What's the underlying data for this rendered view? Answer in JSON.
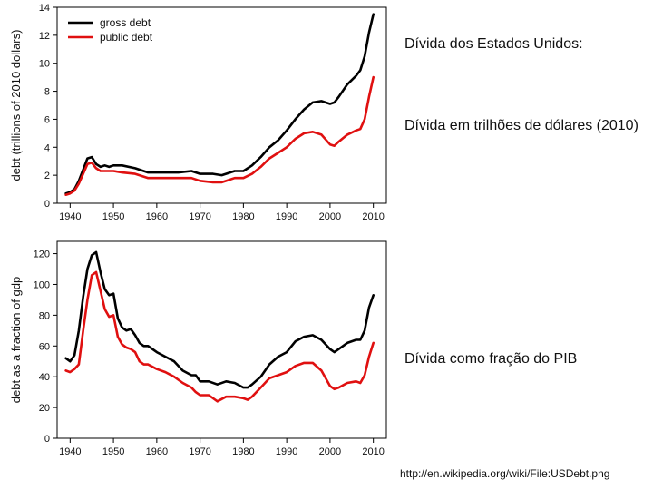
{
  "notes": {
    "title": "Dívida dos Estados Unidos:",
    "unit": "Dívida em trilhões de dólares (2010)",
    "gdp": "Dívida como fração do PIB"
  },
  "source_url": "http://en.wikipedia.org/wiki/File:USDebt.png",
  "colors": {
    "gross": "#000000",
    "public": "#e01010"
  },
  "chart_data": [
    {
      "type": "line",
      "title": "",
      "xlabel": "",
      "ylabel": "debt (trillions of 2010 dollars)",
      "xlim": [
        1937,
        2013
      ],
      "ylim": [
        0,
        14
      ],
      "xticks": [
        1940,
        1950,
        1960,
        1970,
        1980,
        1990,
        2000,
        2010
      ],
      "yticks": [
        0,
        2,
        4,
        6,
        8,
        10,
        12,
        14
      ],
      "legend": "top-left",
      "series": [
        {
          "name": "gross debt",
          "key": "gross",
          "x": [
            1939,
            1940,
            1941,
            1942,
            1943,
            1944,
            1945,
            1946,
            1947,
            1948,
            1949,
            1950,
            1952,
            1955,
            1958,
            1960,
            1965,
            1968,
            1970,
            1973,
            1975,
            1978,
            1980,
            1982,
            1984,
            1986,
            1988,
            1990,
            1992,
            1994,
            1996,
            1998,
            2000,
            2001,
            2002,
            2004,
            2006,
            2007,
            2008,
            2009,
            2010
          ],
          "y": [
            0.7,
            0.8,
            1.0,
            1.6,
            2.4,
            3.2,
            3.3,
            2.8,
            2.6,
            2.7,
            2.6,
            2.7,
            2.7,
            2.5,
            2.2,
            2.2,
            2.2,
            2.3,
            2.1,
            2.1,
            2.0,
            2.3,
            2.3,
            2.7,
            3.3,
            4.0,
            4.5,
            5.2,
            6.0,
            6.7,
            7.2,
            7.3,
            7.1,
            7.2,
            7.6,
            8.5,
            9.1,
            9.5,
            10.5,
            12.2,
            13.5
          ]
        },
        {
          "name": "public debt",
          "key": "public",
          "x": [
            1939,
            1940,
            1941,
            1942,
            1943,
            1944,
            1945,
            1946,
            1947,
            1948,
            1950,
            1952,
            1955,
            1958,
            1960,
            1965,
            1968,
            1970,
            1973,
            1975,
            1978,
            1980,
            1982,
            1984,
            1986,
            1988,
            1990,
            1992,
            1994,
            1996,
            1998,
            2000,
            2001,
            2002,
            2004,
            2006,
            2007,
            2008,
            2009,
            2010
          ],
          "y": [
            0.6,
            0.7,
            0.9,
            1.4,
            2.1,
            2.8,
            2.9,
            2.5,
            2.3,
            2.3,
            2.3,
            2.2,
            2.1,
            1.8,
            1.8,
            1.8,
            1.8,
            1.6,
            1.5,
            1.5,
            1.8,
            1.8,
            2.1,
            2.6,
            3.2,
            3.6,
            4.0,
            4.6,
            5.0,
            5.1,
            4.9,
            4.2,
            4.1,
            4.4,
            4.9,
            5.2,
            5.3,
            6.0,
            7.6,
            9.0
          ]
        }
      ]
    },
    {
      "type": "line",
      "title": "",
      "xlabel": "",
      "ylabel": "debt as a fraction of gdp",
      "xlim": [
        1937,
        2013
      ],
      "ylim": [
        0,
        128
      ],
      "xticks": [
        1940,
        1950,
        1960,
        1970,
        1980,
        1990,
        2000,
        2010
      ],
      "yticks": [
        0,
        20,
        40,
        60,
        80,
        100,
        120
      ],
      "legend": "none",
      "series": [
        {
          "name": "gross debt",
          "key": "gross",
          "x": [
            1939,
            1940,
            1941,
            1942,
            1943,
            1944,
            1945,
            1946,
            1947,
            1948,
            1949,
            1950,
            1951,
            1952,
            1953,
            1954,
            1955,
            1956,
            1957,
            1958,
            1960,
            1962,
            1964,
            1966,
            1968,
            1969,
            1970,
            1972,
            1974,
            1976,
            1978,
            1980,
            1981,
            1982,
            1984,
            1986,
            1988,
            1990,
            1992,
            1994,
            1996,
            1998,
            2000,
            2001,
            2002,
            2004,
            2006,
            2007,
            2008,
            2009,
            2010
          ],
          "y": [
            52,
            50,
            54,
            70,
            92,
            110,
            119,
            121,
            108,
            97,
            93,
            94,
            78,
            72,
            70,
            71,
            67,
            62,
            60,
            60,
            56,
            53,
            50,
            44,
            41,
            41,
            37,
            37,
            35,
            37,
            36,
            33,
            33,
            35,
            40,
            48,
            53,
            56,
            63,
            66,
            67,
            64,
            58,
            56,
            58,
            62,
            64,
            64,
            70,
            85,
            93
          ]
        },
        {
          "name": "public debt",
          "key": "public",
          "x": [
            1939,
            1940,
            1941,
            1942,
            1943,
            1944,
            1945,
            1946,
            1947,
            1948,
            1949,
            1950,
            1951,
            1952,
            1953,
            1954,
            1955,
            1956,
            1957,
            1958,
            1960,
            1962,
            1964,
            1966,
            1968,
            1969,
            1970,
            1972,
            1974,
            1976,
            1978,
            1980,
            1981,
            1982,
            1984,
            1986,
            1988,
            1990,
            1992,
            1994,
            1996,
            1998,
            2000,
            2001,
            2002,
            2004,
            2006,
            2007,
            2008,
            2009,
            2010
          ],
          "y": [
            44,
            43,
            45,
            48,
            70,
            90,
            106,
            108,
            96,
            84,
            79,
            80,
            66,
            61,
            59,
            58,
            56,
            50,
            48,
            48,
            45,
            43,
            40,
            36,
            33,
            30,
            28,
            28,
            24,
            27,
            27,
            26,
            25,
            27,
            33,
            39,
            41,
            43,
            47,
            49,
            49,
            44,
            34,
            32,
            33,
            36,
            37,
            36,
            41,
            53,
            62
          ]
        }
      ]
    }
  ]
}
